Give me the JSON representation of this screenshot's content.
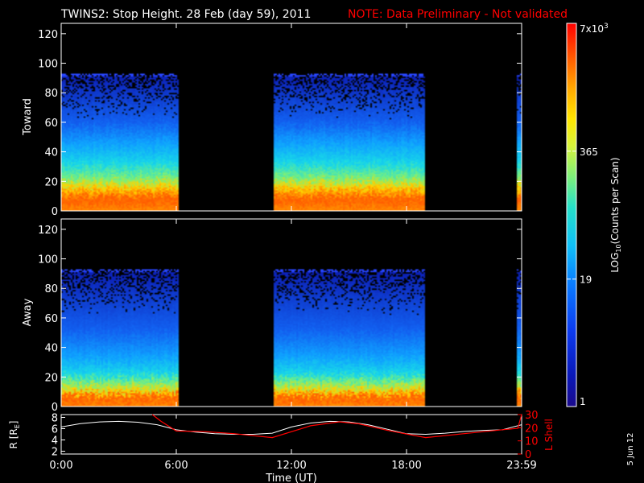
{
  "title": "TWINS2: Stop Height. 28 Feb (day  59), 2011",
  "note": "NOTE: Data Preliminary - Not validated",
  "date_stamp": "5 Jun 12",
  "colors": {
    "note": "#ff0000",
    "lshell": "#ff0000",
    "rline": "#ffffff",
    "frame": "#ffffff",
    "background": "#000000"
  },
  "colorbar": {
    "label": "LOG10(Counts per Scan)",
    "label_main": "LOG",
    "label_sub": "10",
    "label_rest": "(Counts per Scan)",
    "scale": "log",
    "range": [
      1,
      7000
    ],
    "ticks": [
      {
        "value": 7000,
        "label": "7x10",
        "sup": "3"
      },
      {
        "value": 365,
        "label": "365"
      },
      {
        "value": 19,
        "label": "19"
      },
      {
        "value": 1,
        "label": "1"
      }
    ]
  },
  "chart_data": [
    {
      "type": "heatmap",
      "panel": "toward",
      "ylabel": "Toward",
      "ylim": [
        0,
        127
      ],
      "yticks": [
        "0",
        "20",
        "40",
        "60",
        "80",
        "100",
        "120"
      ],
      "xlim_hours": [
        0,
        24
      ],
      "data_intervals_hours": [
        [
          0.0,
          6.1
        ],
        [
          11.05,
          19.0
        ],
        [
          23.75,
          24.0
        ]
      ],
      "max_height": 92,
      "color_profile": [
        [
          0,
          "#ff8a00"
        ],
        [
          8,
          "#ff5a00"
        ],
        [
          16,
          "#ffd400"
        ],
        [
          22,
          "#7af07a"
        ],
        [
          32,
          "#18d8e8"
        ],
        [
          46,
          "#0fa0ff"
        ],
        [
          60,
          "#1260f0"
        ],
        [
          92,
          "#0c1eb4"
        ]
      ]
    },
    {
      "type": "heatmap",
      "panel": "away",
      "ylabel": "Away",
      "ylim": [
        0,
        127
      ],
      "yticks": [
        "0",
        "20",
        "40",
        "60",
        "80",
        "100",
        "120"
      ],
      "xlim_hours": [
        0,
        24
      ],
      "data_intervals_hours": [
        [
          0.0,
          6.1
        ],
        [
          11.05,
          19.0
        ],
        [
          23.75,
          24.0
        ]
      ],
      "max_height": 92,
      "color_profile": [
        [
          0,
          "#ff8a00"
        ],
        [
          6,
          "#ff5a00"
        ],
        [
          10,
          "#ffd400"
        ],
        [
          16,
          "#7af07a"
        ],
        [
          22,
          "#18d8e8"
        ],
        [
          34,
          "#0fa0ff"
        ],
        [
          52,
          "#1260f0"
        ],
        [
          92,
          "#0c1eb4"
        ]
      ]
    },
    {
      "type": "line",
      "panel": "orbit",
      "xlabel": "Time (UT)",
      "xticks": [
        "0:00",
        "6:00",
        "12:00",
        "18:00",
        "23:59"
      ],
      "xlim_hours": [
        0,
        24
      ],
      "left_axis": {
        "label": "R [RE]",
        "label_main": "R [R",
        "label_sub": "E",
        "label_end": "]",
        "ylim": [
          1.5,
          8.5
        ],
        "ticks": [
          "2",
          "4",
          "6",
          "8"
        ]
      },
      "right_axis": {
        "label": "L Shell",
        "ylim": [
          0,
          30
        ],
        "ticks": [
          "0",
          "10",
          "20",
          "30"
        ]
      },
      "series": [
        {
          "axis": "left",
          "x": [
            0,
            1,
            2,
            3,
            4,
            5,
            6,
            7,
            8,
            9,
            10,
            11,
            12,
            13,
            14,
            15,
            16,
            17,
            18,
            19,
            20,
            21,
            22,
            23,
            24
          ],
          "values": [
            6.3,
            6.9,
            7.2,
            7.3,
            7.15,
            6.7,
            5.8,
            5.4,
            5.1,
            5.0,
            5.0,
            5.2,
            6.3,
            7.0,
            7.3,
            7.2,
            6.7,
            5.9,
            5.1,
            5.0,
            5.2,
            5.5,
            5.7,
            5.8,
            6.7
          ]
        },
        {
          "axis": "right",
          "x": [
            4.75,
            5.2,
            6.0,
            7.5,
            9.0,
            11.0,
            13.0,
            14.5,
            15.5,
            17.0,
            19.0,
            21.0,
            23.0,
            23.8,
            24.0
          ],
          "values": [
            30,
            25,
            17.5,
            17,
            15.5,
            12.5,
            21.5,
            24.5,
            23,
            18,
            12.5,
            15.5,
            18.5,
            19.5,
            30
          ]
        }
      ]
    }
  ]
}
